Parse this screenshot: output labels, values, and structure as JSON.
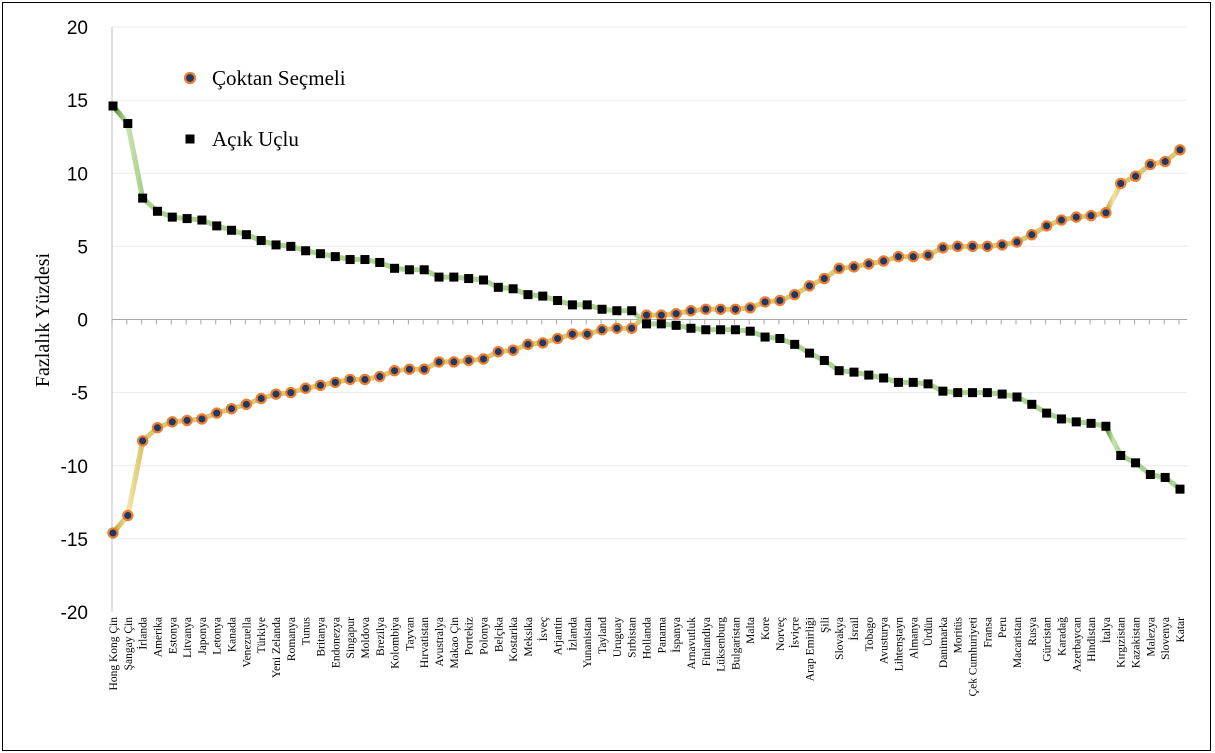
{
  "chart_data": {
    "type": "line",
    "title": "",
    "xlabel": "",
    "ylabel": "Fazlalık Yüzdesi",
    "ylim": [
      -20,
      20
    ],
    "yticks": [
      20,
      15,
      10,
      5,
      0,
      -5,
      -10,
      -15,
      -20
    ],
    "grid": "horizontal",
    "legend_position": "top-left",
    "categories": [
      "Hong Kong Çin",
      "Şangay Çin",
      "İrlanda",
      "Amerika",
      "Estonya",
      "Litvanya",
      "Japonya",
      "Letonya",
      "Kanada",
      "Venezuella",
      "Türkiye",
      "Yeni Zelanda",
      "Romanya",
      "Tunus",
      "Britanya",
      "Endonezya",
      "Singapur",
      "Moldova",
      "Brezilya",
      "Kolombiya",
      "Tayvan",
      "Hırvatistan",
      "Avustralya",
      "Makao Çin",
      "Portekiz",
      "Polonya",
      "Belçika",
      "Kostarika",
      "Meksika",
      "İsveç",
      "Arjantin",
      "İzlanda",
      "Yunanistan",
      "Tayland",
      "Uruguay",
      "Sırbistan",
      "Hollanda",
      "Panama",
      "İspanya",
      "Arnavutluk",
      "Finlandiya",
      "Lüksenburg",
      "Bulgaristan",
      "Malta",
      "Kore",
      "Norveç",
      "İsviçre",
      "Arap Emirliği",
      "Şili",
      "Slovakya",
      "İsrail",
      "Tobago",
      "Avusturya",
      "Lihtenştayn",
      "Almanya",
      "Ürdün",
      "Danimarka",
      "Moritüs",
      "Çek Cumhuriyeti",
      "Fransa",
      "Peru",
      "Macaristan",
      "Rusya",
      "Gürcistan",
      "Karadağ",
      "Azerbaycan",
      "Hindistan",
      "İtalya",
      "Kırgızistan",
      "Kazakistan",
      "Malezya",
      "Slovenya",
      "Katar"
    ],
    "series": [
      {
        "name": "Çoktan Seçmeli",
        "marker": "circle",
        "line_color": "#d9c56a",
        "marker_fill": "#1f3864",
        "marker_edge": "#ed7d31",
        "values": [
          -14.6,
          -13.4,
          -8.3,
          -7.4,
          -7.0,
          -6.9,
          -6.8,
          -6.4,
          -6.1,
          -5.8,
          -5.4,
          -5.1,
          -5.0,
          -4.7,
          -4.5,
          -4.3,
          -4.1,
          -4.1,
          -3.9,
          -3.5,
          -3.4,
          -3.4,
          -2.9,
          -2.9,
          -2.8,
          -2.7,
          -2.2,
          -2.1,
          -1.7,
          -1.6,
          -1.3,
          -1.0,
          -1.0,
          -0.7,
          -0.6,
          -0.6,
          0.3,
          0.3,
          0.4,
          0.6,
          0.7,
          0.7,
          0.7,
          0.8,
          1.2,
          1.3,
          1.7,
          2.3,
          2.8,
          3.5,
          3.6,
          3.8,
          4.0,
          4.3,
          4.3,
          4.4,
          4.9,
          5.0,
          5.0,
          5.0,
          5.1,
          5.3,
          5.8,
          6.4,
          6.8,
          7.0,
          7.1,
          7.3,
          9.3,
          9.8,
          10.6,
          10.8,
          11.6
        ]
      },
      {
        "name": "Açık Uçlu",
        "marker": "square",
        "line_color": "#a9cf8a",
        "marker_fill": "#000000",
        "values": [
          14.6,
          13.4,
          8.3,
          7.4,
          7.0,
          6.9,
          6.8,
          6.4,
          6.1,
          5.8,
          5.4,
          5.1,
          5.0,
          4.7,
          4.5,
          4.3,
          4.1,
          4.1,
          3.9,
          3.5,
          3.4,
          3.4,
          2.9,
          2.9,
          2.8,
          2.7,
          2.2,
          2.1,
          1.7,
          1.6,
          1.3,
          1.0,
          1.0,
          0.7,
          0.6,
          0.6,
          -0.3,
          -0.3,
          -0.4,
          -0.6,
          -0.7,
          -0.7,
          -0.7,
          -0.8,
          -1.2,
          -1.3,
          -1.7,
          -2.3,
          -2.8,
          -3.5,
          -3.6,
          -3.8,
          -4.0,
          -4.3,
          -4.3,
          -4.4,
          -4.9,
          -5.0,
          -5.0,
          -5.0,
          -5.1,
          -5.3,
          -5.8,
          -6.4,
          -6.8,
          -7.0,
          -7.1,
          -7.3,
          -9.3,
          -9.8,
          -10.6,
          -10.8,
          -11.6
        ]
      }
    ]
  }
}
